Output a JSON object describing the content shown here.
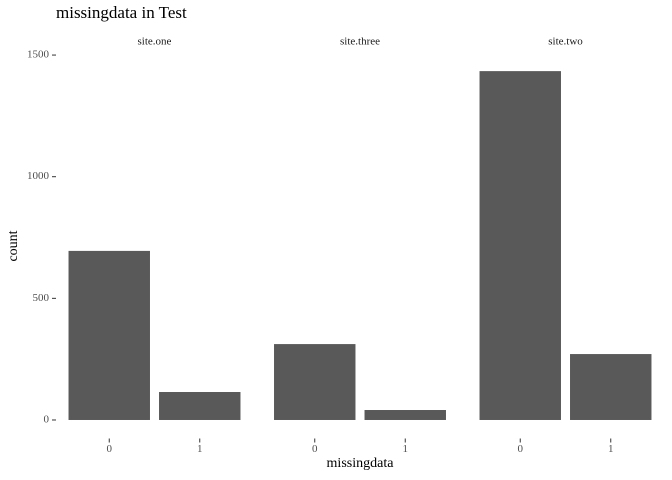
{
  "chart_data": {
    "type": "bar",
    "title": "missingdata in Test",
    "x_label": "missingdata",
    "y_label": "count",
    "color": "#595959",
    "facets": [
      {
        "name": "site.one",
        "categories": [
          "0",
          "1"
        ],
        "values": [
          695,
          115
        ]
      },
      {
        "name": "site.three",
        "categories": [
          "0",
          "1"
        ],
        "values": [
          312,
          41
        ]
      },
      {
        "name": "site.two",
        "categories": [
          "0",
          "1"
        ],
        "values": [
          1434,
          271
        ]
      }
    ],
    "ylim": [
      -72,
      1506
    ],
    "yticks": [
      0,
      500,
      1000,
      1500
    ]
  }
}
